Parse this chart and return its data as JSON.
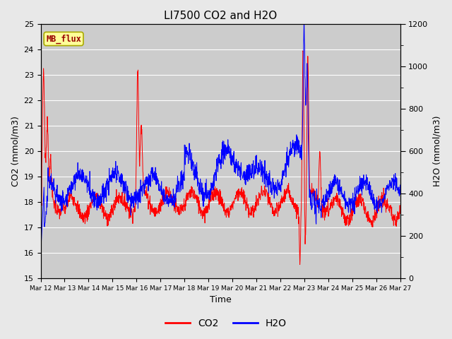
{
  "title": "LI7500 CO2 and H2O",
  "xlabel": "Time",
  "ylabel_left": "CO2 (mmol/m3)",
  "ylabel_right": "H2O (mmol/m3)",
  "ylim_left": [
    15.0,
    25.0
  ],
  "ylim_right": [
    0,
    1200
  ],
  "co2_color": "#FF0000",
  "h2o_color": "#0000FF",
  "fig_bg_color": "#E8E8E8",
  "plot_bg_color": "#CCCCCC",
  "legend_label_co2": "CO2",
  "legend_label_h2o": "H2O",
  "annotation_text": "MB_flux",
  "annotation_bg": "#FFFF99",
  "annotation_border": "#AAAA00",
  "x_tick_labels": [
    "Mar 12",
    "Mar 13",
    "Mar 14",
    "Mar 15",
    "Mar 16",
    "Mar 17",
    "Mar 18",
    "Mar 19",
    "Mar 20",
    "Mar 21",
    "Mar 22",
    "Mar 23",
    "Mar 24",
    "Mar 25",
    "Mar 26",
    "Mar 27"
  ],
  "yticks_left": [
    15.0,
    16.0,
    17.0,
    18.0,
    19.0,
    20.0,
    21.0,
    22.0,
    23.0,
    24.0,
    25.0
  ],
  "yticks_right": [
    0,
    200,
    400,
    600,
    800,
    1000,
    1200
  ],
  "title_fontsize": 11,
  "axis_fontsize": 9,
  "tick_fontsize": 8
}
